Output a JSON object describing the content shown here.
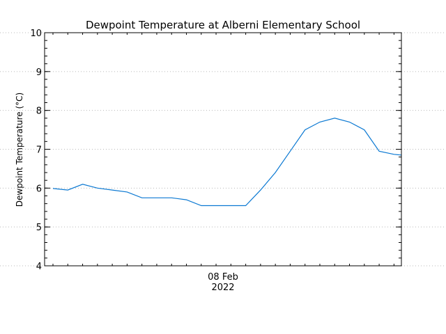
{
  "chart_data": {
    "type": "line",
    "title": "Dewpoint Temperature at Alberni Elementary School",
    "ylabel": "Dewpoint Temperature (°C)",
    "xlabel": "",
    "x_tick_label_line1": "08 Feb",
    "x_tick_label_line2": "2022",
    "ylim": [
      4,
      10
    ],
    "yticks": [
      4,
      5,
      6,
      7,
      8,
      9,
      10
    ],
    "xlim_hours": [
      0,
      23.5
    ],
    "grid": true,
    "line_color": "#0a78d2",
    "series": [
      {
        "x_hours": [
          0,
          1,
          2,
          3,
          4,
          5,
          6,
          7,
          8,
          9,
          10,
          11,
          12,
          13,
          14,
          15,
          16,
          17,
          18,
          19,
          20,
          21,
          22,
          23,
          23.5
        ],
        "values": [
          5.99,
          5.95,
          6.1,
          6.0,
          5.95,
          5.9,
          5.75,
          5.75,
          5.75,
          5.7,
          5.55,
          5.55,
          5.55,
          5.55,
          5.95,
          6.4,
          6.95,
          7.5,
          7.7,
          7.8,
          7.7,
          7.5,
          6.95,
          6.87,
          6.85
        ]
      }
    ]
  }
}
